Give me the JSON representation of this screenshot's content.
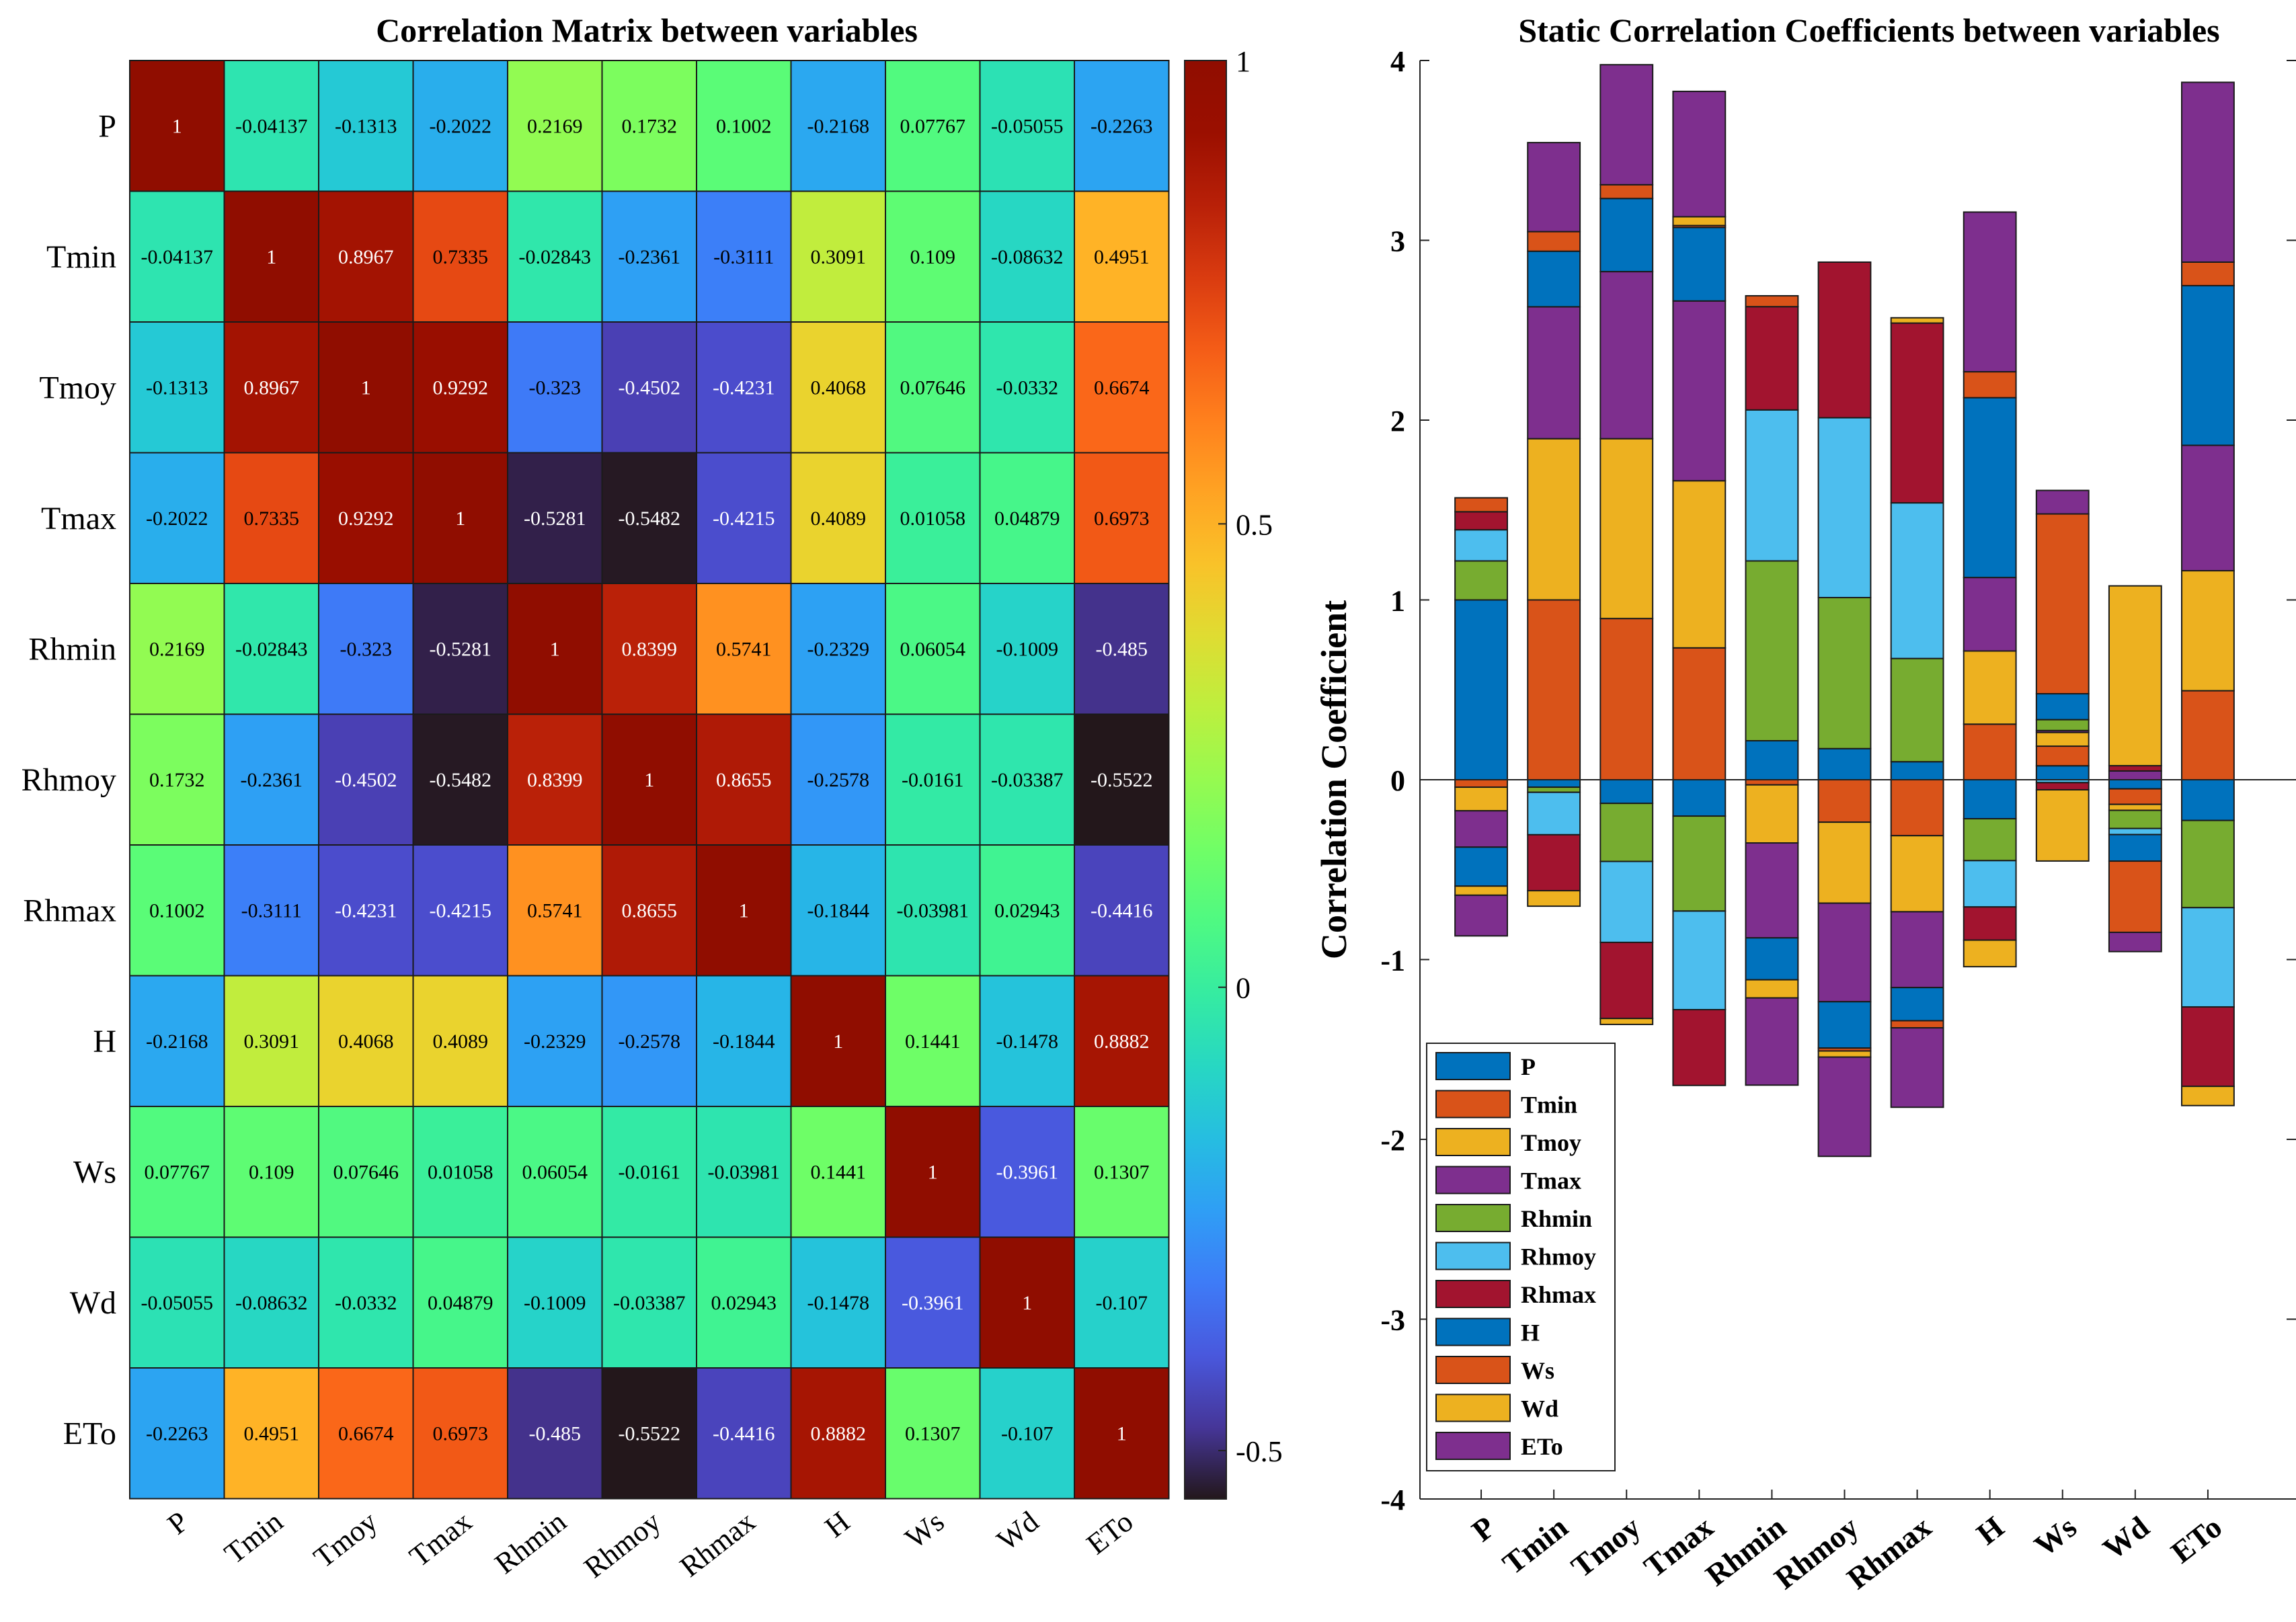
{
  "chart_data": [
    {
      "type": "heatmap",
      "title": "Correlation Matrix between variables",
      "xlabel": "",
      "ylabel": "",
      "variables": [
        "P",
        "Tmin",
        "Tmoy",
        "Tmax",
        "Rhmin",
        "Rhmoy",
        "Rhmax",
        "H",
        "Ws",
        "Wd",
        "ETo"
      ],
      "values": [
        [
          1,
          -0.04137,
          -0.1313,
          -0.2022,
          0.2169,
          0.1732,
          0.1002,
          -0.2168,
          0.07767,
          -0.05055,
          -0.2263
        ],
        [
          -0.04137,
          1,
          0.8967,
          0.7335,
          -0.02843,
          -0.2361,
          -0.3111,
          0.3091,
          0.109,
          -0.08632,
          0.4951
        ],
        [
          -0.1313,
          0.8967,
          1,
          0.9292,
          -0.323,
          -0.4502,
          -0.4231,
          0.4068,
          0.07646,
          -0.0332,
          0.6674
        ],
        [
          -0.2022,
          0.7335,
          0.9292,
          1,
          -0.5281,
          -0.5482,
          -0.4215,
          0.4089,
          0.01058,
          0.04879,
          0.6973
        ],
        [
          0.2169,
          -0.02843,
          -0.323,
          -0.5281,
          1,
          0.8399,
          0.5741,
          -0.2329,
          0.06054,
          -0.1009,
          -0.485
        ],
        [
          0.1732,
          -0.2361,
          -0.4502,
          -0.5482,
          0.8399,
          1,
          0.8655,
          -0.2578,
          -0.0161,
          -0.03387,
          -0.5522
        ],
        [
          0.1002,
          -0.3111,
          -0.4231,
          -0.4215,
          0.5741,
          0.8655,
          1,
          -0.1844,
          -0.03981,
          0.02943,
          -0.4416
        ],
        [
          -0.2168,
          0.3091,
          0.4068,
          0.4089,
          -0.2329,
          -0.2578,
          -0.1844,
          1,
          0.1441,
          -0.1478,
          0.8882
        ],
        [
          0.07767,
          0.109,
          0.07646,
          0.01058,
          0.06054,
          -0.0161,
          -0.03981,
          0.1441,
          1,
          -0.3961,
          0.1307
        ],
        [
          -0.05055,
          -0.08632,
          -0.0332,
          0.04879,
          -0.1009,
          -0.03387,
          0.02943,
          -0.1478,
          -0.3961,
          1,
          -0.107
        ],
        [
          -0.2263,
          0.4951,
          0.6674,
          0.6973,
          -0.485,
          -0.5522,
          -0.4416,
          0.8882,
          0.1307,
          -0.107,
          1
        ]
      ],
      "value_labels": [
        [
          "1",
          "-0.04137",
          "-0.1313",
          "-0.2022",
          "0.2169",
          "0.1732",
          "0.1002",
          "-0.2168",
          "0.07767",
          "-0.05055",
          "-0.2263"
        ],
        [
          "-0.04137",
          "1",
          "0.8967",
          "0.7335",
          "-0.02843",
          "-0.2361",
          "-0.3111",
          "0.3091",
          "0.109",
          "-0.08632",
          "0.4951"
        ],
        [
          "-0.1313",
          "0.8967",
          "1",
          "0.9292",
          "-0.323",
          "-0.4502",
          "-0.4231",
          "0.4068",
          "0.07646",
          "-0.0332",
          "0.6674"
        ],
        [
          "-0.2022",
          "0.7335",
          "0.9292",
          "1",
          "-0.5281",
          "-0.5482",
          "-0.4215",
          "0.4089",
          "0.01058",
          "0.04879",
          "0.6973"
        ],
        [
          "0.2169",
          "-0.02843",
          "-0.323",
          "-0.5281",
          "1",
          "0.8399",
          "0.5741",
          "-0.2329",
          "0.06054",
          "-0.1009",
          "-0.485"
        ],
        [
          "0.1732",
          "-0.2361",
          "-0.4502",
          "-0.5482",
          "0.8399",
          "1",
          "0.8655",
          "-0.2578",
          "-0.0161",
          "-0.03387",
          "-0.5522"
        ],
        [
          "0.1002",
          "-0.3111",
          "-0.4231",
          "-0.4215",
          "0.5741",
          "0.8655",
          "1",
          "-0.1844",
          "-0.03981",
          "0.02943",
          "-0.4416"
        ],
        [
          "-0.2168",
          "0.3091",
          "0.4068",
          "0.4089",
          "-0.2329",
          "-0.2578",
          "-0.1844",
          "1",
          "0.1441",
          "-0.1478",
          "0.8882"
        ],
        [
          "0.07767",
          "0.109",
          "0.07646",
          "0.01058",
          "0.06054",
          "-0.0161",
          "-0.03981",
          "0.1441",
          "1",
          "-0.3961",
          "0.1307"
        ],
        [
          "-0.05055",
          "-0.08632",
          "-0.0332",
          "0.04879",
          "-0.1009",
          "-0.03387",
          "0.02943",
          "-0.1478",
          "-0.3961",
          "1",
          "-0.107"
        ],
        [
          "-0.2263",
          "0.4951",
          "0.6674",
          "0.6973",
          "-0.485",
          "-0.5522",
          "-0.4416",
          "0.8882",
          "0.1307",
          "-0.107",
          "1"
        ]
      ],
      "colorbar": {
        "colormap": "turbo",
        "range": [
          -0.5522,
          1
        ],
        "ticks": [
          1,
          0.5,
          0,
          -0.5
        ],
        "tick_labels": [
          "1",
          "0.5",
          "0",
          "-0.5"
        ]
      }
    },
    {
      "type": "bar",
      "stacked": true,
      "title": "Static Correlation Coefficients between variables",
      "xlabel": "",
      "ylabel": "Correlation Coefficient",
      "categories": [
        "P",
        "Tmin",
        "Tmoy",
        "Tmax",
        "Rhmin",
        "Rhmoy",
        "Rhmax",
        "H",
        "Ws",
        "Wd",
        "ETo"
      ],
      "ylim": [
        -4,
        4
      ],
      "yticks": [
        -4,
        -3,
        -2,
        -1,
        0,
        1,
        2,
        3,
        4
      ],
      "ytick_labels": [
        "-4",
        "-3",
        "-2",
        "-1",
        "0",
        "1",
        "2",
        "3",
        "4"
      ],
      "series": [
        {
          "name": "P",
          "color": "#0072BD",
          "values": [
            1,
            -0.04137,
            -0.1313,
            -0.2022,
            0.2169,
            0.1732,
            0.1002,
            -0.2168,
            0.07767,
            -0.05055,
            -0.2263
          ]
        },
        {
          "name": "Tmin",
          "color": "#D95319",
          "values": [
            -0.04137,
            1,
            0.8967,
            0.7335,
            -0.02843,
            -0.2361,
            -0.3111,
            0.3091,
            0.109,
            -0.08632,
            0.4951
          ]
        },
        {
          "name": "Tmoy",
          "color": "#EDB120",
          "values": [
            -0.1313,
            0.8967,
            1,
            0.9292,
            -0.323,
            -0.4502,
            -0.4231,
            0.4068,
            0.07646,
            -0.0332,
            0.6674
          ]
        },
        {
          "name": "Tmax",
          "color": "#7E2F8E",
          "values": [
            -0.2022,
            0.7335,
            0.9292,
            1,
            -0.5281,
            -0.5482,
            -0.4215,
            0.4089,
            0.01058,
            0.04879,
            0.6973
          ]
        },
        {
          "name": "Rhmin",
          "color": "#77AC30",
          "values": [
            0.2169,
            -0.02843,
            -0.323,
            -0.5281,
            1,
            0.8399,
            0.5741,
            -0.2329,
            0.06054,
            -0.1009,
            -0.485
          ]
        },
        {
          "name": "Rhmoy",
          "color": "#4DBEEE",
          "values": [
            0.1732,
            -0.2361,
            -0.4502,
            -0.5482,
            0.8399,
            1,
            0.8655,
            -0.2578,
            -0.0161,
            -0.03387,
            -0.5522
          ]
        },
        {
          "name": "Rhmax",
          "color": "#A2142F",
          "values": [
            0.1002,
            -0.3111,
            -0.4231,
            -0.4215,
            0.5741,
            0.8655,
            1,
            -0.1844,
            -0.03981,
            0.02943,
            -0.4416
          ]
        },
        {
          "name": "H",
          "color": "#0072BD",
          "values": [
            -0.2168,
            0.3091,
            0.4068,
            0.4089,
            -0.2329,
            -0.2578,
            -0.1844,
            1,
            0.1441,
            -0.1478,
            0.8882
          ]
        },
        {
          "name": "Ws",
          "color": "#D95319",
          "values": [
            0.07767,
            0.109,
            0.07646,
            0.01058,
            0.06054,
            -0.0161,
            -0.03981,
            0.1441,
            1,
            -0.3961,
            0.1307
          ]
        },
        {
          "name": "Wd",
          "color": "#EDB120",
          "values": [
            -0.05055,
            -0.08632,
            -0.0332,
            0.04879,
            -0.1009,
            -0.03387,
            0.02943,
            -0.1478,
            -0.3961,
            1,
            -0.107
          ]
        },
        {
          "name": "ETo",
          "color": "#7E2F8E",
          "values": [
            -0.2263,
            0.4951,
            0.6674,
            0.6973,
            -0.485,
            -0.5522,
            -0.4416,
            0.8882,
            0.1307,
            -0.107,
            1
          ]
        }
      ],
      "legend_position": "bottom-left"
    }
  ]
}
